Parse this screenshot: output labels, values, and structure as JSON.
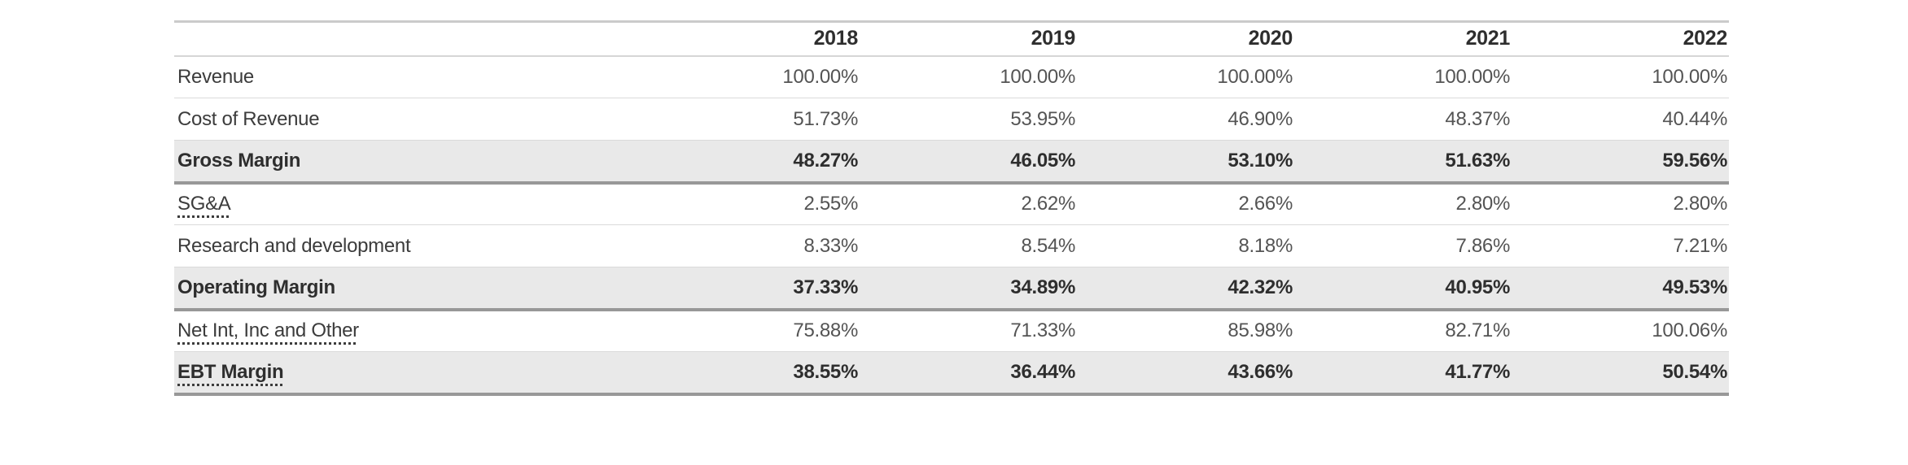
{
  "colors": {
    "row_highlight_bg": "#e9e9e9",
    "heavy_border": "#989898",
    "light_border": "#dadada",
    "header_border_top": "#cbcbcb",
    "header_text": "#2e2e2e",
    "label_text": "#3c3c3c",
    "value_text": "#545454"
  },
  "chart_data": {
    "type": "table",
    "title": "",
    "columns": [
      "",
      "2018",
      "2019",
      "2020",
      "2021",
      "2022"
    ],
    "rows": [
      {
        "label": "Revenue",
        "values": [
          "100.00%",
          "100.00%",
          "100.00%",
          "100.00%",
          "100.00%"
        ],
        "emphasis": false,
        "underline": false
      },
      {
        "label": "Cost of Revenue",
        "values": [
          "51.73%",
          "53.95%",
          "46.90%",
          "48.37%",
          "40.44%"
        ],
        "emphasis": false,
        "underline": false
      },
      {
        "label": "Gross Margin",
        "values": [
          "48.27%",
          "46.05%",
          "53.10%",
          "51.63%",
          "59.56%"
        ],
        "emphasis": true,
        "underline": false
      },
      {
        "label": "SG&A",
        "values": [
          "2.55%",
          "2.62%",
          "2.66%",
          "2.80%",
          "2.80%"
        ],
        "emphasis": false,
        "underline": true
      },
      {
        "label": "Research and development",
        "values": [
          "8.33%",
          "8.54%",
          "8.18%",
          "7.86%",
          "7.21%"
        ],
        "emphasis": false,
        "underline": false
      },
      {
        "label": "Operating Margin",
        "values": [
          "37.33%",
          "34.89%",
          "42.32%",
          "40.95%",
          "49.53%"
        ],
        "emphasis": true,
        "underline": false
      },
      {
        "label": "Net Int, Inc and Other",
        "values": [
          "75.88%",
          "71.33%",
          "85.98%",
          "82.71%",
          "100.06%"
        ],
        "emphasis": false,
        "underline": true
      },
      {
        "label": "EBT Margin",
        "values": [
          "38.55%",
          "36.44%",
          "43.66%",
          "41.77%",
          "50.54%"
        ],
        "emphasis": true,
        "underline": true
      }
    ]
  }
}
